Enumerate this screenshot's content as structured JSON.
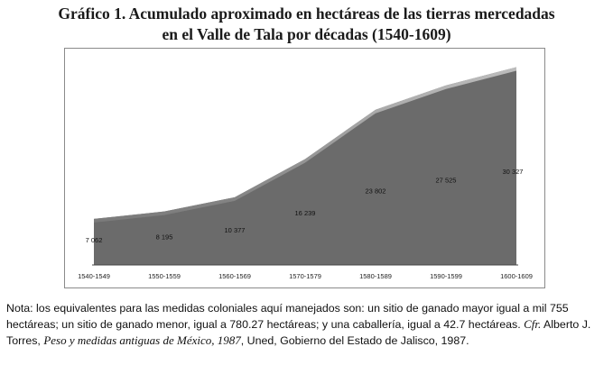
{
  "title": {
    "line1": "Gráfico 1. Acumulado aproximado en hectáreas de las tierras mercedadas",
    "line2": "en el Valle de Tala por décadas (1540-1609)"
  },
  "colors": {
    "area_fill": "#6b6b6b",
    "area_top": "#b8b8b8",
    "box_border": "#8a8a8a",
    "axis": "#444444"
  },
  "chart_data": {
    "type": "area",
    "title": "Gráfico 1. Acumulado aproximado en hectáreas de las tierras mercedadas en el Valle de Tala por décadas (1540-1609)",
    "categories": [
      "1540-1549",
      "1550-1559",
      "1560-1569",
      "1570-1579",
      "1580-1589",
      "1590-1599",
      "1600-1609"
    ],
    "values": [
      7062,
      8195,
      10377,
      16239,
      23802,
      27525,
      30327
    ],
    "data_labels": [
      "7 062",
      "8 195",
      "10 377",
      "16 239",
      "23 802",
      "27 525",
      "30 327"
    ],
    "xlabel": "",
    "ylabel": "",
    "ylim": [
      0,
      31500
    ],
    "grid": false,
    "legend": "none"
  },
  "note": {
    "part1": "Nota: los equivalentes para las medidas coloniales aquí manejados son: un sitio de ganado mayor igual a mil 755 hectáreas; un sitio de ganado menor, igual a 780.27 hectáreas; y una caballería, igual a 42.7 hectáreas. ",
    "cfr": "Cfr.",
    "part2": " Alberto J. Torres, ",
    "book": "Peso y medidas antiguas de México, 1987",
    "part3": ", Uned, Gobierno del Estado de Jalisco, 1987."
  }
}
